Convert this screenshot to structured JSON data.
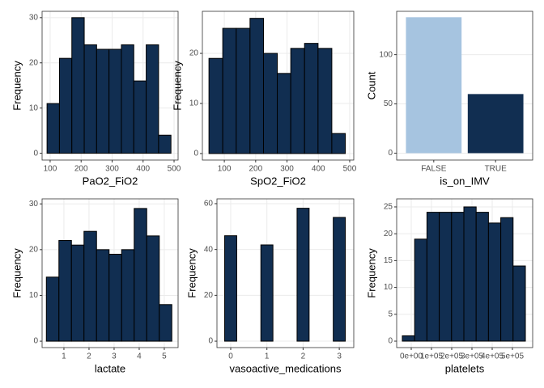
{
  "chart_data": [
    {
      "type": "histogram",
      "x_label": "PaO2_FiO2",
      "y_label": "Frequency",
      "bins": [
        90,
        130,
        170,
        210,
        250,
        290,
        330,
        370,
        410,
        450,
        490
      ],
      "values": [
        11,
        21,
        30,
        24,
        23,
        23,
        24,
        16,
        24,
        4
      ],
      "color": "#112e51",
      "xlim": [
        74,
        513
      ],
      "xticks": [
        100,
        200,
        300,
        400,
        500
      ],
      "ylim": [
        -1.5,
        31.4
      ],
      "yticks": [
        0,
        10,
        20,
        30
      ],
      "grid": true
    },
    {
      "type": "histogram",
      "x_label": "SpO2_FiO2",
      "y_label": "Frequency",
      "bins": [
        51,
        95,
        138,
        182,
        225,
        269,
        312,
        356,
        399,
        443,
        486
      ],
      "values": [
        19,
        25,
        25,
        27,
        20,
        16,
        21,
        22,
        21,
        4
      ],
      "color": "#112e51",
      "xlim": [
        30,
        513
      ],
      "xticks": [
        100,
        200,
        300,
        400,
        500
      ],
      "ylim": [
        -1.3,
        28.4
      ],
      "yticks": [
        0,
        10,
        20
      ],
      "grid": true
    },
    {
      "type": "bar",
      "x_label": "is_on_IMV",
      "y_label": "Count",
      "categories": [
        "FALSE",
        "TRUE"
      ],
      "values": [
        138,
        60
      ],
      "colors": [
        "#a6c4e0",
        "#112e51"
      ],
      "ylim": [
        -7,
        144
      ],
      "yticks": [
        0,
        50,
        100
      ],
      "grid": true
    },
    {
      "type": "histogram",
      "x_label": "lactate",
      "y_label": "Frequency",
      "bins": [
        0.3,
        0.8,
        1.3,
        1.8,
        2.3,
        2.8,
        3.3,
        3.8,
        4.3,
        4.8,
        5.3
      ],
      "values": [
        14,
        22,
        21,
        24,
        20,
        19,
        20,
        29,
        23,
        8
      ],
      "color": "#112e51",
      "xlim": [
        0.13,
        5.55
      ],
      "xticks": [
        1,
        2,
        3,
        4,
        5
      ],
      "ylim": [
        -1.4,
        31.1
      ],
      "yticks": [
        0,
        10,
        20,
        30
      ],
      "grid": true
    },
    {
      "type": "histogram",
      "x_label": "vasoactive_medications",
      "y_label": "Frequency",
      "bins": [
        -0.1667,
        0.1667,
        0.5,
        0.8333,
        1.1667,
        1.5,
        1.8333,
        2.1667,
        2.5,
        2.8333,
        3.1667
      ],
      "values": [
        46,
        0,
        0,
        42,
        0,
        0,
        58,
        0,
        0,
        54
      ],
      "color": "#112e51",
      "xlim": [
        -0.38,
        3.4
      ],
      "xticks": [
        0,
        1,
        2,
        3
      ],
      "ylim": [
        -2.8,
        62.1
      ],
      "yticks": [
        0,
        20,
        40,
        60
      ],
      "grid": true
    },
    {
      "type": "histogram",
      "x_label": "platelets",
      "y_label": "Frequency",
      "bins": [
        -44000,
        16800,
        77600,
        138400,
        199200,
        260000,
        320800,
        381600,
        442400,
        503200,
        564000
      ],
      "values": [
        1,
        19,
        24,
        24,
        24,
        25,
        24,
        22,
        23,
        14
      ],
      "color": "#112e51",
      "xlim": [
        -72000,
        600000
      ],
      "xticks": [
        {
          "value": 0,
          "label": "0e+00"
        },
        {
          "value": 100000,
          "label": "1e+05"
        },
        {
          "value": 200000,
          "label": "2e+05"
        },
        {
          "value": 300000,
          "label": "3e+05"
        },
        {
          "value": 400000,
          "label": "4e+05"
        },
        {
          "value": 500000,
          "label": "5e+05"
        }
      ],
      "ylim": [
        -1.2,
        26.5
      ],
      "yticks": [
        0,
        5,
        10,
        15,
        20,
        25
      ],
      "grid": true
    }
  ]
}
